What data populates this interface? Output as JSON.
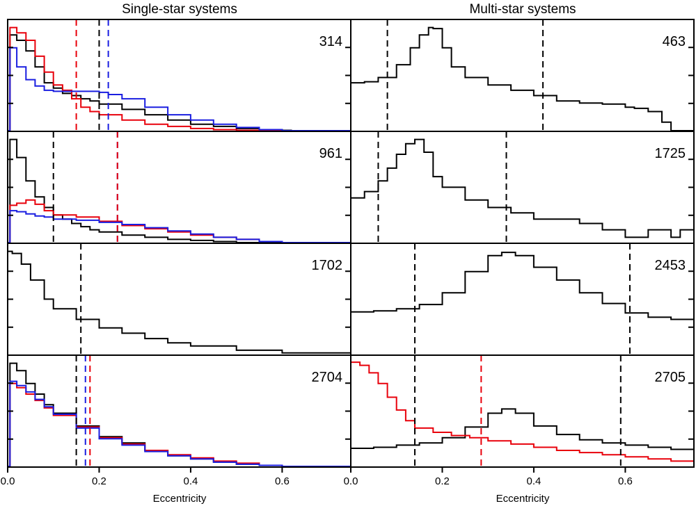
{
  "figure": {
    "left_title": "Single-star systems",
    "right_title": "Multi-star systems",
    "xlabel": "Eccentricity"
  },
  "chart_data": [
    {
      "type": "area",
      "panel": "single-1",
      "label": "314",
      "xlim": [
        0,
        0.75
      ],
      "series": [
        {
          "color": "#000000",
          "x": [
            0,
            0.005,
            0.02,
            0.04,
            0.06,
            0.08,
            0.1,
            0.12,
            0.14,
            0.16,
            0.18,
            0.2,
            0.25,
            0.3,
            0.35,
            0.4,
            0.45,
            0.5,
            0.55,
            0.6,
            0.62,
            0.75
          ],
          "y": [
            0,
            0.9,
            0.85,
            0.75,
            0.6,
            0.45,
            0.4,
            0.35,
            0.33,
            0.3,
            0.28,
            0.25,
            0.2,
            0.15,
            0.1,
            0.06,
            0.04,
            0.02,
            0.01,
            0.003,
            0,
            0
          ]
        },
        {
          "color": "#e8000b",
          "x": [
            0,
            0.005,
            0.02,
            0.04,
            0.06,
            0.08,
            0.1,
            0.12,
            0.14,
            0.16,
            0.18,
            0.2,
            0.25,
            0.3,
            0.35,
            0.4,
            0.45,
            0.5,
            0.55,
            0.6,
            0.75
          ],
          "y": [
            0,
            0.97,
            0.92,
            0.85,
            0.7,
            0.55,
            0.43,
            0.38,
            0.3,
            0.22,
            0.18,
            0.15,
            0.1,
            0.06,
            0.04,
            0.02,
            0.01,
            0.003,
            0,
            0,
            0
          ]
        },
        {
          "color": "#1a1ee0",
          "x": [
            0,
            0.005,
            0.02,
            0.04,
            0.06,
            0.08,
            0.1,
            0.12,
            0.14,
            0.16,
            0.18,
            0.2,
            0.22,
            0.25,
            0.3,
            0.35,
            0.4,
            0.45,
            0.5,
            0.55,
            0.6,
            0.75
          ],
          "y": [
            0,
            0.78,
            0.6,
            0.48,
            0.42,
            0.38,
            0.37,
            0.37,
            0.37,
            0.37,
            0.37,
            0.36,
            0.34,
            0.3,
            0.22,
            0.15,
            0.1,
            0.06,
            0.03,
            0.01,
            0,
            0
          ]
        }
      ],
      "vlines": [
        {
          "x": 0.15,
          "color": "#e8000b"
        },
        {
          "x": 0.2,
          "color": "#000000"
        },
        {
          "x": 0.22,
          "color": "#1a1ee0"
        }
      ]
    },
    {
      "type": "area",
      "panel": "single-2",
      "label": "961",
      "xlim": [
        0,
        0.75
      ],
      "series": [
        {
          "color": "#000000",
          "x": [
            0,
            0.005,
            0.02,
            0.04,
            0.06,
            0.08,
            0.1,
            0.12,
            0.14,
            0.16,
            0.18,
            0.2,
            0.25,
            0.3,
            0.35,
            0.4,
            0.45,
            0.5,
            0.55,
            0.6,
            0.75
          ],
          "y": [
            0,
            0.97,
            0.8,
            0.58,
            0.43,
            0.33,
            0.26,
            0.22,
            0.18,
            0.15,
            0.12,
            0.1,
            0.07,
            0.05,
            0.03,
            0.02,
            0.01,
            0,
            0,
            0,
            0
          ]
        },
        {
          "color": "#e8000b",
          "x": [
            0,
            0.005,
            0.02,
            0.04,
            0.06,
            0.08,
            0.1,
            0.15,
            0.2,
            0.25,
            0.3,
            0.35,
            0.4,
            0.45,
            0.5,
            0.55,
            0.6,
            0.75
          ],
          "y": [
            0,
            0.35,
            0.37,
            0.4,
            0.36,
            0.3,
            0.26,
            0.24,
            0.2,
            0.16,
            0.13,
            0.1,
            0.07,
            0.05,
            0.03,
            0.01,
            0,
            0
          ]
        },
        {
          "color": "#1a1ee0",
          "x": [
            0,
            0.005,
            0.02,
            0.04,
            0.06,
            0.08,
            0.1,
            0.15,
            0.2,
            0.25,
            0.3,
            0.35,
            0.4,
            0.45,
            0.5,
            0.55,
            0.6,
            0.75
          ],
          "y": [
            0,
            0.3,
            0.29,
            0.27,
            0.25,
            0.24,
            0.22,
            0.21,
            0.19,
            0.17,
            0.14,
            0.11,
            0.08,
            0.05,
            0.03,
            0.01,
            0,
            0
          ]
        }
      ],
      "vlines": [
        {
          "x": 0.1,
          "color": "#000000"
        },
        {
          "x": 0.24,
          "color": "#1a1ee0"
        },
        {
          "x": 0.24,
          "color": "#e8000b"
        }
      ]
    },
    {
      "type": "area",
      "panel": "single-3",
      "label": "1702",
      "xlim": [
        0,
        0.75
      ],
      "series": [
        {
          "color": "#000000",
          "x": [
            0,
            0.01,
            0.03,
            0.05,
            0.08,
            0.1,
            0.15,
            0.2,
            0.25,
            0.3,
            0.35,
            0.4,
            0.5,
            0.6,
            0.75
          ],
          "y": [
            0.97,
            0.95,
            0.85,
            0.7,
            0.52,
            0.43,
            0.33,
            0.25,
            0.2,
            0.15,
            0.11,
            0.08,
            0.04,
            0.015,
            0
          ]
        }
      ],
      "vlines": [
        {
          "x": 0.16,
          "color": "#000000"
        }
      ]
    },
    {
      "type": "area",
      "panel": "single-4",
      "label": "2704",
      "xlim": [
        0,
        0.75
      ],
      "series": [
        {
          "color": "#000000",
          "x": [
            0,
            0.005,
            0.02,
            0.04,
            0.06,
            0.08,
            0.1,
            0.15,
            0.2,
            0.25,
            0.3,
            0.35,
            0.4,
            0.45,
            0.5,
            0.55,
            0.6,
            0.75
          ],
          "y": [
            0,
            0.97,
            0.9,
            0.78,
            0.68,
            0.58,
            0.5,
            0.38,
            0.28,
            0.22,
            0.15,
            0.1,
            0.07,
            0.04,
            0.02,
            0.01,
            0,
            0
          ]
        },
        {
          "color": "#e8000b",
          "x": [
            0,
            0.005,
            0.02,
            0.04,
            0.06,
            0.08,
            0.1,
            0.15,
            0.2,
            0.25,
            0.3,
            0.35,
            0.4,
            0.45,
            0.5,
            0.55,
            0.6,
            0.75
          ],
          "y": [
            0,
            0.78,
            0.74,
            0.68,
            0.62,
            0.55,
            0.48,
            0.37,
            0.27,
            0.21,
            0.15,
            0.11,
            0.08,
            0.05,
            0.03,
            0.01,
            0,
            0
          ]
        },
        {
          "color": "#1a1ee0",
          "x": [
            0,
            0.005,
            0.02,
            0.04,
            0.06,
            0.08,
            0.1,
            0.15,
            0.2,
            0.25,
            0.3,
            0.35,
            0.4,
            0.45,
            0.5,
            0.55,
            0.6,
            0.75
          ],
          "y": [
            0,
            0.8,
            0.76,
            0.7,
            0.63,
            0.56,
            0.49,
            0.36,
            0.26,
            0.2,
            0.14,
            0.1,
            0.07,
            0.04,
            0.02,
            0.01,
            0,
            0
          ]
        }
      ],
      "vlines": [
        {
          "x": 0.15,
          "color": "#000000"
        },
        {
          "x": 0.17,
          "color": "#1a1ee0"
        },
        {
          "x": 0.18,
          "color": "#e8000b"
        }
      ]
    },
    {
      "type": "area",
      "panel": "multi-1",
      "label": "463",
      "xlim": [
        0,
        0.75
      ],
      "series": [
        {
          "color": "#000000",
          "x": [
            0,
            0.03,
            0.06,
            0.1,
            0.13,
            0.15,
            0.17,
            0.18,
            0.2,
            0.22,
            0.25,
            0.3,
            0.35,
            0.4,
            0.45,
            0.5,
            0.55,
            0.6,
            0.62,
            0.65,
            0.68,
            0.7,
            0.75
          ],
          "y": [
            0.45,
            0.46,
            0.5,
            0.62,
            0.78,
            0.9,
            0.97,
            0.96,
            0.78,
            0.6,
            0.5,
            0.43,
            0.38,
            0.33,
            0.28,
            0.26,
            0.25,
            0.22,
            0.21,
            0.18,
            0.08,
            0,
            0
          ]
        }
      ],
      "vlines": [
        {
          "x": 0.08,
          "color": "#000000"
        },
        {
          "x": 0.42,
          "color": "#000000"
        }
      ]
    },
    {
      "type": "area",
      "panel": "multi-2",
      "label": "1725",
      "xlim": [
        0,
        0.75
      ],
      "series": [
        {
          "color": "#000000",
          "x": [
            0,
            0.03,
            0.06,
            0.08,
            0.1,
            0.12,
            0.14,
            0.16,
            0.18,
            0.2,
            0.25,
            0.3,
            0.35,
            0.4,
            0.45,
            0.5,
            0.55,
            0.6,
            0.65,
            0.7,
            0.72,
            0.75
          ],
          "y": [
            0.42,
            0.48,
            0.58,
            0.7,
            0.83,
            0.93,
            0.97,
            0.85,
            0.62,
            0.52,
            0.4,
            0.33,
            0.28,
            0.22,
            0.22,
            0.18,
            0.12,
            0.05,
            0.12,
            0.05,
            0.12,
            0.08
          ]
        }
      ],
      "vlines": [
        {
          "x": 0.06,
          "color": "#000000"
        },
        {
          "x": 0.34,
          "color": "#000000"
        }
      ]
    },
    {
      "type": "area",
      "panel": "multi-3",
      "label": "2453",
      "xlim": [
        0,
        0.75
      ],
      "series": [
        {
          "color": "#000000",
          "x": [
            0,
            0.05,
            0.1,
            0.15,
            0.2,
            0.25,
            0.3,
            0.33,
            0.36,
            0.4,
            0.45,
            0.5,
            0.55,
            0.6,
            0.65,
            0.7,
            0.75
          ],
          "y": [
            0.4,
            0.41,
            0.43,
            0.47,
            0.58,
            0.78,
            0.93,
            0.96,
            0.93,
            0.82,
            0.7,
            0.58,
            0.48,
            0.39,
            0.35,
            0.33,
            0.31
          ]
        }
      ],
      "vlines": [
        {
          "x": 0.14,
          "color": "#000000"
        },
        {
          "x": 0.61,
          "color": "#000000"
        }
      ]
    },
    {
      "type": "area",
      "panel": "multi-4",
      "label": "2705",
      "xlim": [
        0,
        0.75
      ],
      "series": [
        {
          "color": "#000000",
          "x": [
            0,
            0.05,
            0.1,
            0.15,
            0.2,
            0.25,
            0.3,
            0.33,
            0.36,
            0.4,
            0.45,
            0.5,
            0.55,
            0.6,
            0.65,
            0.7,
            0.75
          ],
          "y": [
            0.17,
            0.18,
            0.2,
            0.22,
            0.27,
            0.37,
            0.5,
            0.54,
            0.5,
            0.38,
            0.3,
            0.25,
            0.22,
            0.2,
            0.18,
            0.16,
            0.15
          ]
        },
        {
          "color": "#e8000b",
          "x": [
            0,
            0.02,
            0.04,
            0.06,
            0.08,
            0.1,
            0.12,
            0.14,
            0.18,
            0.22,
            0.26,
            0.3,
            0.35,
            0.4,
            0.45,
            0.5,
            0.55,
            0.6,
            0.65,
            0.7,
            0.75
          ],
          "y": [
            0.98,
            0.95,
            0.88,
            0.78,
            0.65,
            0.53,
            0.43,
            0.36,
            0.32,
            0.29,
            0.27,
            0.24,
            0.21,
            0.18,
            0.15,
            0.13,
            0.11,
            0.09,
            0.07,
            0.05,
            0.03
          ]
        }
      ],
      "vlines": [
        {
          "x": 0.14,
          "color": "#000000"
        },
        {
          "x": 0.285,
          "color": "#e8000b"
        },
        {
          "x": 0.59,
          "color": "#000000"
        }
      ]
    }
  ],
  "xticks": {
    "left": [
      {
        "v": 0.0,
        "label": "0.0"
      },
      {
        "v": 0.2,
        "label": "0.2"
      },
      {
        "v": 0.4,
        "label": "0.4"
      },
      {
        "v": 0.6,
        "label": "0.6"
      }
    ],
    "right": [
      {
        "v": 0.0,
        "label": "0.0"
      },
      {
        "v": 0.2,
        "label": "0.2"
      },
      {
        "v": 0.4,
        "label": "0.4"
      },
      {
        "v": 0.6,
        "label": "0.6"
      }
    ]
  }
}
